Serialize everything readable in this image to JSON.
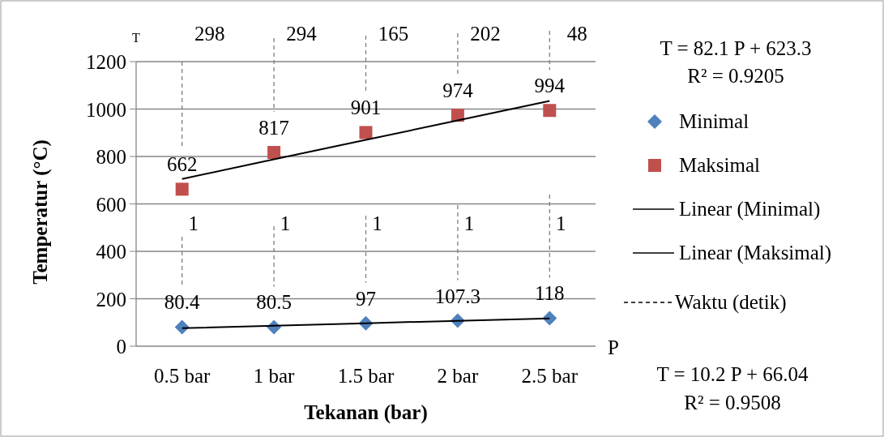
{
  "chart_data": {
    "type": "scatter",
    "xlabel": "Tekanan (bar)",
    "ylabel": "Temperatur  (°C)",
    "categories": [
      "0.5 bar",
      "1 bar",
      "1.5 bar",
      "2 bar",
      "2.5 bar"
    ],
    "ylim": [
      0,
      1200
    ],
    "yticks": [
      0,
      200,
      400,
      600,
      800,
      1000,
      1200
    ],
    "grid": "y",
    "legend": "right",
    "series": [
      {
        "name": "Minimal",
        "type": "scatter",
        "marker": "diamond",
        "color": "#4f81bd",
        "values": [
          80.4,
          80.5,
          97,
          107.3,
          118
        ],
        "value_labels": [
          "80.4",
          "80.5",
          "97",
          "107.3",
          "118"
        ]
      },
      {
        "name": "Maksimal",
        "type": "scatter",
        "marker": "square",
        "color": "#c0504d",
        "values": [
          662,
          817,
          901,
          974,
          994
        ],
        "value_labels": [
          "662",
          "817",
          "901",
          "974",
          "994"
        ]
      },
      {
        "name": "Linear (Minimal)",
        "type": "line",
        "line_style": "solid",
        "color": "#000000",
        "values": [
          76,
          86,
          97,
          107,
          117
        ]
      },
      {
        "name": "Linear (Maksimal)",
        "type": "line",
        "line_style": "solid",
        "color": "#000000",
        "values": [
          705,
          788,
          870,
          952,
          1034
        ]
      },
      {
        "name": "Waktu (detik)",
        "type": "line",
        "line_style": "dashed",
        "color": "#000000",
        "values": [
          null,
          null,
          null,
          null,
          null
        ]
      }
    ],
    "annotations": [
      "T",
      "P",
      "T = 82.1 P + 623.3",
      "R² = 0.9205",
      "T = 10.2 P + 66.04",
      "R² = 0.9508",
      "298",
      "294",
      "165",
      "202",
      "48",
      "1",
      "1",
      "1",
      "1",
      "1"
    ]
  }
}
